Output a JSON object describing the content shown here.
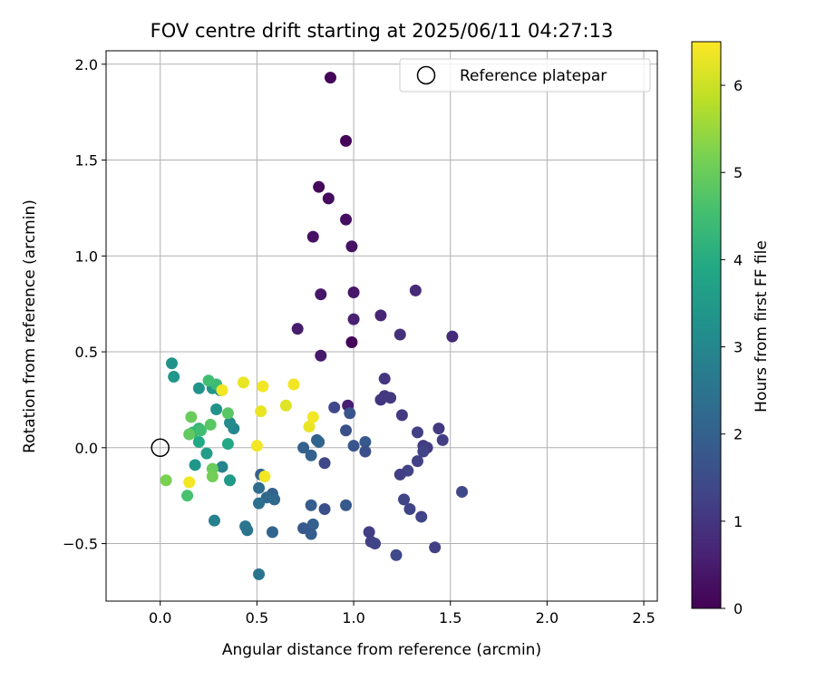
{
  "chart_data": {
    "type": "scatter",
    "title": "FOV centre drift starting at 2025/06/11 04:27:13",
    "xlabel": "Angular distance from reference (arcmin)",
    "ylabel": "Rotation from reference (arcmin)",
    "xlim": [
      -0.28,
      2.57
    ],
    "ylim": [
      -0.8,
      2.07
    ],
    "xticks": [
      0.0,
      0.5,
      1.0,
      1.5,
      2.0,
      2.5
    ],
    "yticks": [
      -0.5,
      0.0,
      0.5,
      1.0,
      1.5,
      2.0
    ],
    "xtick_labels": [
      "0.0",
      "0.5",
      "1.0",
      "1.5",
      "2.0",
      "2.5"
    ],
    "ytick_labels": [
      "−0.5",
      "0.0",
      "0.5",
      "1.0",
      "1.5",
      "2.0"
    ],
    "grid": true,
    "legend": {
      "placement": "top-right",
      "entries": [
        "Reference platepar"
      ]
    },
    "reference_point": {
      "x": 0.0,
      "y": 0.0
    },
    "colorbar": {
      "label": "Hours from first FF file",
      "range": [
        0,
        6.5
      ],
      "ticks": [
        0,
        1,
        2,
        3,
        4,
        5,
        6
      ],
      "tick_labels": [
        "0",
        "1",
        "2",
        "3",
        "4",
        "5",
        "6"
      ],
      "colormap": "viridis"
    },
    "points": [
      {
        "x": 0.88,
        "y": 1.93,
        "c": 0.05
      },
      {
        "x": 0.96,
        "y": 1.6,
        "c": 0.1
      },
      {
        "x": 0.82,
        "y": 1.36,
        "c": 0.15
      },
      {
        "x": 0.87,
        "y": 1.3,
        "c": 0.2
      },
      {
        "x": 0.96,
        "y": 1.19,
        "c": 0.25
      },
      {
        "x": 0.79,
        "y": 1.1,
        "c": 0.3
      },
      {
        "x": 0.99,
        "y": 1.05,
        "c": 0.3
      },
      {
        "x": 0.83,
        "y": 0.8,
        "c": 0.4
      },
      {
        "x": 1.0,
        "y": 0.81,
        "c": 0.4
      },
      {
        "x": 0.71,
        "y": 0.62,
        "c": 0.5
      },
      {
        "x": 0.99,
        "y": 0.55,
        "c": 0.1
      },
      {
        "x": 0.83,
        "y": 0.48,
        "c": 0.45
      },
      {
        "x": 1.0,
        "y": 0.67,
        "c": 0.6
      },
      {
        "x": 1.14,
        "y": 0.69,
        "c": 0.7
      },
      {
        "x": 1.32,
        "y": 0.82,
        "c": 0.8
      },
      {
        "x": 1.24,
        "y": 0.59,
        "c": 0.9
      },
      {
        "x": 1.51,
        "y": 0.58,
        "c": 0.8
      },
      {
        "x": 0.97,
        "y": 0.22,
        "c": 0.55
      },
      {
        "x": 1.16,
        "y": 0.36,
        "c": 1.0
      },
      {
        "x": 1.14,
        "y": 0.25,
        "c": 1.0
      },
      {
        "x": 1.16,
        "y": 0.27,
        "c": 1.05
      },
      {
        "x": 1.19,
        "y": 0.26,
        "c": 1.1
      },
      {
        "x": 1.25,
        "y": 0.17,
        "c": 1.1
      },
      {
        "x": 0.9,
        "y": 0.21,
        "c": 1.4
      },
      {
        "x": 0.98,
        "y": 0.18,
        "c": 1.7
      },
      {
        "x": 0.96,
        "y": 0.09,
        "c": 1.6
      },
      {
        "x": 1.33,
        "y": 0.08,
        "c": 1.2
      },
      {
        "x": 1.44,
        "y": 0.1,
        "c": 1.1
      },
      {
        "x": 1.46,
        "y": 0.04,
        "c": 1.2
      },
      {
        "x": 1.36,
        "y": 0.01,
        "c": 1.1
      },
      {
        "x": 1.38,
        "y": 0.0,
        "c": 1.15
      },
      {
        "x": 1.36,
        "y": -0.02,
        "c": 1.3
      },
      {
        "x": 1.33,
        "y": -0.07,
        "c": 1.25
      },
      {
        "x": 1.28,
        "y": -0.12,
        "c": 1.3
      },
      {
        "x": 1.24,
        "y": -0.14,
        "c": 1.2
      },
      {
        "x": 1.56,
        "y": -0.23,
        "c": 1.4
      },
      {
        "x": 1.26,
        "y": -0.27,
        "c": 1.3
      },
      {
        "x": 1.29,
        "y": -0.32,
        "c": 1.3
      },
      {
        "x": 1.35,
        "y": -0.36,
        "c": 1.3
      },
      {
        "x": 1.08,
        "y": -0.44,
        "c": 1.2
      },
      {
        "x": 1.09,
        "y": -0.49,
        "c": 1.2
      },
      {
        "x": 1.11,
        "y": -0.5,
        "c": 1.3
      },
      {
        "x": 1.42,
        "y": -0.52,
        "c": 1.2
      },
      {
        "x": 1.22,
        "y": -0.56,
        "c": 1.4
      },
      {
        "x": 1.06,
        "y": 0.03,
        "c": 1.8
      },
      {
        "x": 1.0,
        "y": 0.01,
        "c": 1.7
      },
      {
        "x": 1.06,
        "y": -0.02,
        "c": 1.6
      },
      {
        "x": 0.85,
        "y": -0.08,
        "c": 1.4
      },
      {
        "x": 0.81,
        "y": 0.04,
        "c": 2.0
      },
      {
        "x": 0.82,
        "y": 0.03,
        "c": 2.1
      },
      {
        "x": 0.74,
        "y": 0.0,
        "c": 2.0
      },
      {
        "x": 0.78,
        "y": -0.04,
        "c": 2.0
      },
      {
        "x": 0.96,
        "y": -0.3,
        "c": 1.8
      },
      {
        "x": 0.85,
        "y": -0.32,
        "c": 1.6
      },
      {
        "x": 0.78,
        "y": -0.3,
        "c": 1.9
      },
      {
        "x": 0.79,
        "y": -0.4,
        "c": 2.0
      },
      {
        "x": 0.74,
        "y": -0.42,
        "c": 1.8
      },
      {
        "x": 0.78,
        "y": -0.45,
        "c": 1.9
      },
      {
        "x": 0.58,
        "y": -0.44,
        "c": 2.1
      },
      {
        "x": 0.58,
        "y": -0.24,
        "c": 2.0
      },
      {
        "x": 0.59,
        "y": -0.27,
        "c": 2.2
      },
      {
        "x": 0.55,
        "y": -0.26,
        "c": 2.2
      },
      {
        "x": 0.52,
        "y": -0.14,
        "c": 2.0
      },
      {
        "x": 0.51,
        "y": -0.21,
        "c": 2.3
      },
      {
        "x": 0.51,
        "y": -0.29,
        "c": 2.4
      },
      {
        "x": 0.51,
        "y": -0.66,
        "c": 2.5
      },
      {
        "x": 0.44,
        "y": -0.41,
        "c": 2.6
      },
      {
        "x": 0.45,
        "y": -0.43,
        "c": 2.5
      },
      {
        "x": 0.28,
        "y": -0.38,
        "c": 2.8
      },
      {
        "x": 0.32,
        "y": -0.1,
        "c": 2.9
      },
      {
        "x": 0.38,
        "y": 0.1,
        "c": 3.0
      },
      {
        "x": 0.36,
        "y": 0.13,
        "c": 3.1
      },
      {
        "x": 0.29,
        "y": 0.2,
        "c": 3.3
      },
      {
        "x": 0.31,
        "y": 0.3,
        "c": 3.2
      },
      {
        "x": 0.27,
        "y": 0.31,
        "c": 3.4
      },
      {
        "x": 0.2,
        "y": 0.31,
        "c": 3.3
      },
      {
        "x": 0.06,
        "y": 0.44,
        "c": 3.3
      },
      {
        "x": 0.07,
        "y": 0.37,
        "c": 3.4
      },
      {
        "x": 0.18,
        "y": -0.09,
        "c": 3.4
      },
      {
        "x": 0.24,
        "y": -0.03,
        "c": 3.6
      },
      {
        "x": 0.36,
        "y": -0.17,
        "c": 3.5
      },
      {
        "x": 0.2,
        "y": 0.03,
        "c": 3.9
      },
      {
        "x": 0.35,
        "y": 0.02,
        "c": 3.9
      },
      {
        "x": 0.17,
        "y": 0.08,
        "c": 4.3
      },
      {
        "x": 0.2,
        "y": 0.1,
        "c": 4.3
      },
      {
        "x": 0.21,
        "y": 0.09,
        "c": 4.5
      },
      {
        "x": 0.29,
        "y": 0.33,
        "c": 4.4
      },
      {
        "x": 0.25,
        "y": 0.35,
        "c": 4.5
      },
      {
        "x": 0.35,
        "y": 0.18,
        "c": 4.8
      },
      {
        "x": 0.26,
        "y": 0.12,
        "c": 4.8
      },
      {
        "x": 0.16,
        "y": 0.16,
        "c": 5.0
      },
      {
        "x": 0.15,
        "y": 0.07,
        "c": 4.9
      },
      {
        "x": 0.27,
        "y": -0.11,
        "c": 5.0
      },
      {
        "x": 0.27,
        "y": -0.15,
        "c": 5.1
      },
      {
        "x": 0.14,
        "y": -0.25,
        "c": 4.6
      },
      {
        "x": 0.03,
        "y": -0.17,
        "c": 5.2
      },
      {
        "x": 0.15,
        "y": -0.18,
        "c": 6.4
      },
      {
        "x": 0.32,
        "y": 0.3,
        "c": 6.4
      },
      {
        "x": 0.43,
        "y": 0.34,
        "c": 6.3
      },
      {
        "x": 0.53,
        "y": 0.32,
        "c": 6.4
      },
      {
        "x": 0.52,
        "y": 0.19,
        "c": 6.3
      },
      {
        "x": 0.5,
        "y": 0.01,
        "c": 6.4
      },
      {
        "x": 0.54,
        "y": -0.15,
        "c": 6.4
      },
      {
        "x": 0.65,
        "y": 0.22,
        "c": 6.2
      },
      {
        "x": 0.69,
        "y": 0.33,
        "c": 6.4
      },
      {
        "x": 0.77,
        "y": 0.11,
        "c": 6.3
      },
      {
        "x": 0.79,
        "y": 0.16,
        "c": 6.4
      }
    ]
  }
}
